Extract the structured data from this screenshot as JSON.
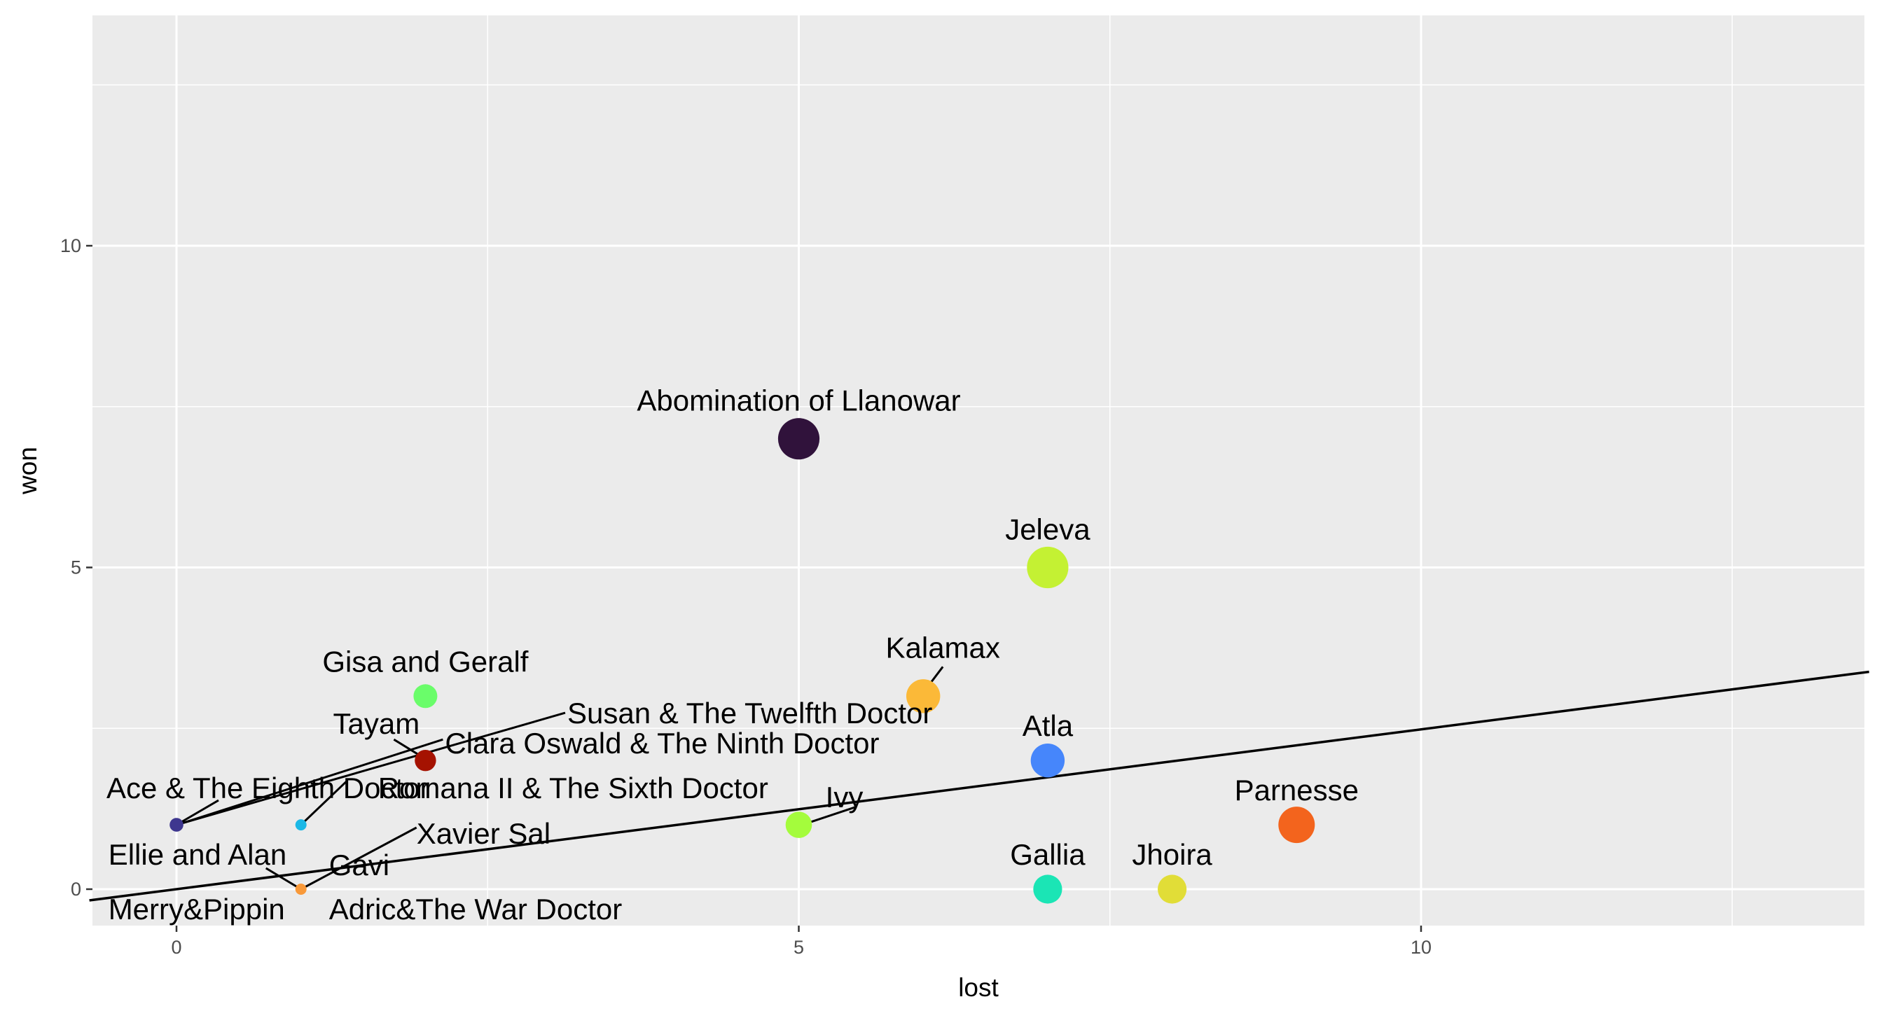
{
  "chart_data": {
    "type": "scatter",
    "xlabel": "lost",
    "ylabel": "won",
    "xlim": [
      -0.7,
      13.6
    ],
    "ylim": [
      -0.7,
      13.6
    ],
    "x_ticks": [
      0,
      5,
      10
    ],
    "y_ticks": [
      0,
      5,
      10
    ],
    "x_tick_labels": [
      "0",
      "5",
      "10"
    ],
    "y_tick_labels": [
      "0",
      "5",
      "10"
    ],
    "grid": true,
    "trend_line": {
      "slope": 0.2484,
      "intercept": 0.0
    },
    "points": [
      {
        "label": "Abomination of Llanowar",
        "lost": 5,
        "won": 7,
        "size": 12,
        "color": "#30123b"
      },
      {
        "label": "Jeleva",
        "lost": 7,
        "won": 5,
        "size": 12,
        "color": "#c4f133"
      },
      {
        "label": "Kalamax",
        "lost": 6,
        "won": 3,
        "size": 9,
        "color": "#fbb938"
      },
      {
        "label": "Gisa and Geralf",
        "lost": 2,
        "won": 3,
        "size": 5,
        "color": "#6afd6a"
      },
      {
        "label": "Atla",
        "lost": 7,
        "won": 2,
        "size": 9,
        "color": "#4686fb"
      },
      {
        "label": "Tayam",
        "lost": 2,
        "won": 2,
        "size": 4,
        "color": "#a51201"
      },
      {
        "label": "Clara Oswald & The Ninth Doctor",
        "lost": 2,
        "won": 2,
        "size": 4,
        "color": "#a51201"
      },
      {
        "label": "Susan & The Twelfth Doctor",
        "lost": 0,
        "won": 1,
        "size": 1,
        "color": "#3e378f"
      },
      {
        "label": "Ace & The Eighth Doctor",
        "lost": 0,
        "won": 1,
        "size": 1,
        "color": "#3e378f"
      },
      {
        "label": "Romana II & The Sixth Doctor",
        "lost": 1,
        "won": 1,
        "size": 0,
        "color": "#1bb8e6"
      },
      {
        "label": "Ivy",
        "lost": 5,
        "won": 1,
        "size": 6,
        "color": "#a4fc3c"
      },
      {
        "label": "Parnesse",
        "lost": 9,
        "won": 1,
        "size": 10,
        "color": "#f3641d"
      },
      {
        "label": "Xavier Sal",
        "lost": 1,
        "won": 0,
        "size": 0,
        "color": "#f99939"
      },
      {
        "label": "Ellie and Alan",
        "lost": 1,
        "won": 0,
        "size": 0,
        "color": "#f99939"
      },
      {
        "label": "Gavi",
        "lost": 1,
        "won": 0,
        "size": 0,
        "color": "#f99939"
      },
      {
        "label": "Merry&Pippin",
        "lost": 1,
        "won": 0,
        "size": 0,
        "color": "#f99939"
      },
      {
        "label": "Adric&The War Doctor",
        "lost": 1,
        "won": 0,
        "size": 0,
        "color": "#f99939"
      },
      {
        "label": "Gallia",
        "lost": 7,
        "won": 0,
        "size": 7,
        "color": "#1be5b5"
      },
      {
        "label": "Jhoira",
        "lost": 8,
        "won": 0,
        "size": 7,
        "color": "#e1dd37"
      }
    ]
  }
}
